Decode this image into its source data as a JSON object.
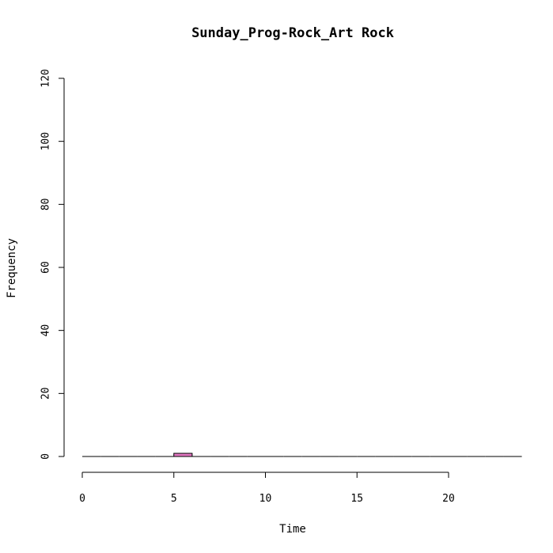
{
  "chart_data": {
    "type": "bar",
    "title": "Sunday_Prog-Rock_Art Rock",
    "xlabel": "Time",
    "ylabel": "Frequency",
    "xlim": [
      0,
      24
    ],
    "ylim": [
      0,
      120
    ],
    "x_ticks": [
      0,
      5,
      10,
      15,
      20
    ],
    "y_ticks": [
      0,
      20,
      40,
      60,
      80,
      100,
      120
    ],
    "bin_width": 1,
    "bins": [
      {
        "x0": 0,
        "x1": 1,
        "count": 0
      },
      {
        "x0": 1,
        "x1": 2,
        "count": 0
      },
      {
        "x0": 2,
        "x1": 3,
        "count": 0
      },
      {
        "x0": 3,
        "x1": 4,
        "count": 0
      },
      {
        "x0": 4,
        "x1": 5,
        "count": 0
      },
      {
        "x0": 5,
        "x1": 6,
        "count": 1
      },
      {
        "x0": 6,
        "x1": 7,
        "count": 0
      },
      {
        "x0": 7,
        "x1": 8,
        "count": 0
      },
      {
        "x0": 8,
        "x1": 9,
        "count": 0
      },
      {
        "x0": 9,
        "x1": 10,
        "count": 0
      },
      {
        "x0": 10,
        "x1": 11,
        "count": 0
      },
      {
        "x0": 11,
        "x1": 12,
        "count": 0
      },
      {
        "x0": 12,
        "x1": 13,
        "count": 0
      },
      {
        "x0": 13,
        "x1": 14,
        "count": 0
      },
      {
        "x0": 14,
        "x1": 15,
        "count": 0
      },
      {
        "x0": 15,
        "x1": 16,
        "count": 0
      },
      {
        "x0": 16,
        "x1": 17,
        "count": 0
      },
      {
        "x0": 17,
        "x1": 18,
        "count": 0
      },
      {
        "x0": 18,
        "x1": 19,
        "count": 0
      },
      {
        "x0": 19,
        "x1": 20,
        "count": 0
      },
      {
        "x0": 20,
        "x1": 21,
        "count": 0
      },
      {
        "x0": 21,
        "x1": 22,
        "count": 0
      },
      {
        "x0": 22,
        "x1": 23,
        "count": 0
      },
      {
        "x0": 23,
        "x1": 24,
        "count": 0
      }
    ],
    "bar_color": "#e377c2",
    "grid": false,
    "legend": "none"
  }
}
